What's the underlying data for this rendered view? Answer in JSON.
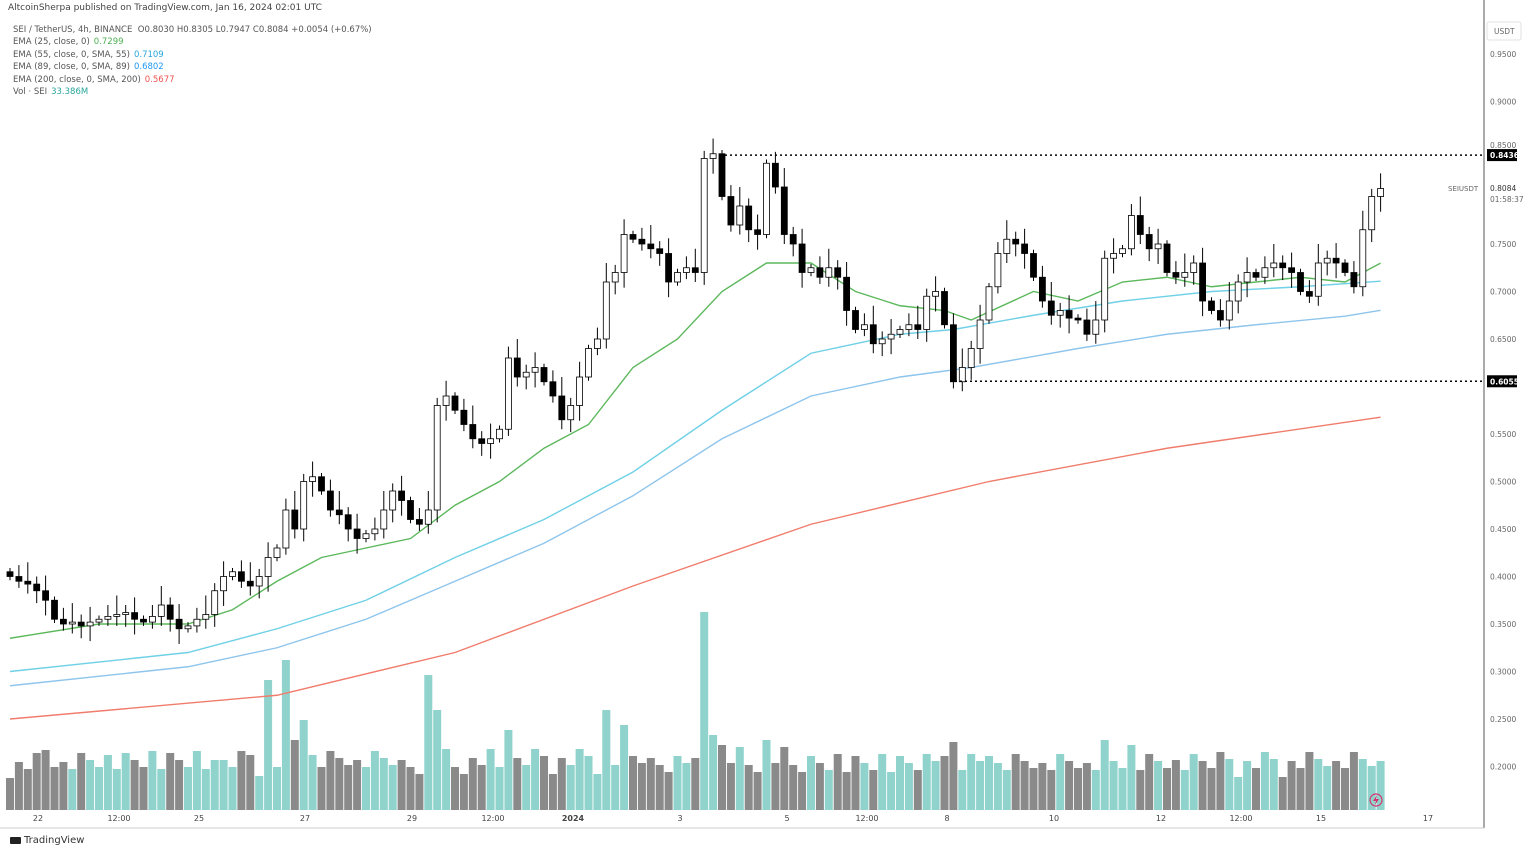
{
  "header": "AltcoinSherpa published on TradingView.com, Jan 16, 2024 02:01 UTC",
  "legend": {
    "symbol": "SEI / TetherUS, 4h, BINANCE",
    "ohlc": "O0.8030  H0.8305  L0.7947  C0.8084  +0.0054 (+0.67%)",
    "indicators": [
      {
        "label": "EMA (25, close, 0)",
        "value": "0.7299",
        "color": "#4caf50"
      },
      {
        "label": "EMA (55, close, 0, SMA, 55)",
        "value": "0.7109",
        "color": "#26a5d9"
      },
      {
        "label": "EMA (89, close, 0, SMA, 89)",
        "value": "0.6802",
        "color": "#2196f3"
      },
      {
        "label": "EMA (200, close, 0, SMA, 200)",
        "value": "0.5677",
        "color": "#ef5350"
      },
      {
        "label": "Vol · SEI",
        "value": "33.386M",
        "color": "#26a69a"
      }
    ]
  },
  "price_axis": {
    "currency": "USDT",
    "ticks": [
      "0.9500",
      "0.9000",
      "0.8500",
      "0.7500",
      "0.7000",
      "0.6500",
      "0.5500",
      "0.5000",
      "0.4500",
      "0.4000",
      "0.3500",
      "0.3000",
      "0.2500",
      "0.2000"
    ],
    "symbol_label": "SEIUSDT",
    "last_price": "0.8084",
    "countdown": "01:58:37",
    "level_high": "0.8436",
    "level_low": "0.6055"
  },
  "time_axis": {
    "ticks": [
      "22",
      "12:00",
      "25",
      "27",
      "29",
      "12:00",
      "2024",
      "3",
      "5",
      "12:00",
      "8",
      "10",
      "12",
      "12:00",
      "15",
      "17"
    ]
  },
  "branding": "TradingView",
  "colors": {
    "up_vol": "#8fd3cc",
    "down_vol": "#8a8a8a",
    "ema25": "#5cb85c",
    "ema55": "#6fd0e6",
    "ema89": "#8ec5ec",
    "ema200": "#f07c6c"
  },
  "chart_data": {
    "type": "candlestick",
    "title": "SEI / TetherUS, 4h, BINANCE",
    "ylim": [
      0.15,
      0.98
    ],
    "close": [
      0.4,
      0.395,
      0.392,
      0.385,
      0.375,
      0.355,
      0.35,
      0.352,
      0.348,
      0.352,
      0.355,
      0.358,
      0.36,
      0.362,
      0.355,
      0.352,
      0.358,
      0.37,
      0.355,
      0.345,
      0.348,
      0.355,
      0.36,
      0.385,
      0.4,
      0.405,
      0.395,
      0.39,
      0.4,
      0.42,
      0.43,
      0.47,
      0.45,
      0.5,
      0.505,
      0.49,
      0.47,
      0.465,
      0.45,
      0.44,
      0.445,
      0.45,
      0.47,
      0.49,
      0.48,
      0.46,
      0.455,
      0.47,
      0.58,
      0.59,
      0.575,
      0.56,
      0.545,
      0.54,
      0.545,
      0.555,
      0.63,
      0.61,
      0.615,
      0.62,
      0.605,
      0.59,
      0.565,
      0.58,
      0.61,
      0.64,
      0.65,
      0.71,
      0.72,
      0.76,
      0.755,
      0.75,
      0.745,
      0.74,
      0.71,
      0.72,
      0.725,
      0.72,
      0.84,
      0.845,
      0.8,
      0.77,
      0.79,
      0.765,
      0.76,
      0.835,
      0.81,
      0.76,
      0.75,
      0.72,
      0.725,
      0.715,
      0.725,
      0.715,
      0.68,
      0.66,
      0.665,
      0.645,
      0.65,
      0.655,
      0.66,
      0.665,
      0.66,
      0.695,
      0.7,
      0.665,
      0.605,
      0.62,
      0.64,
      0.67,
      0.705,
      0.74,
      0.755,
      0.75,
      0.74,
      0.715,
      0.69,
      0.675,
      0.68,
      0.672,
      0.67,
      0.655,
      0.67,
      0.735,
      0.74,
      0.745,
      0.78,
      0.76,
      0.745,
      0.75,
      0.72,
      0.715,
      0.72,
      0.73,
      0.69,
      0.68,
      0.67,
      0.69,
      0.71,
      0.72,
      0.715,
      0.725,
      0.73,
      0.725,
      0.72,
      0.7,
      0.695,
      0.73,
      0.735,
      0.73,
      0.72,
      0.705,
      0.765,
      0.8,
      0.8084
    ],
    "volume_spikes_M": {
      "4": 60,
      "11": 55,
      "23": 50,
      "27": 55,
      "29": 130,
      "31": 150,
      "32": 70,
      "33": 90,
      "34": 55,
      "47": 135,
      "48": 100,
      "56": 80,
      "67": 100,
      "69": 85,
      "78": 198,
      "79": 75,
      "80": 65,
      "85": 70,
      "106": 68,
      "123": 70,
      "126": 65,
      "131": 50
    },
    "ema": {
      "ema25": [
        [
          0,
          0.335
        ],
        [
          10,
          0.35
        ],
        [
          20,
          0.35
        ],
        [
          25,
          0.365
        ],
        [
          30,
          0.395
        ],
        [
          35,
          0.42
        ],
        [
          40,
          0.43
        ],
        [
          45,
          0.44
        ],
        [
          50,
          0.475
        ],
        [
          55,
          0.5
        ],
        [
          60,
          0.535
        ],
        [
          65,
          0.56
        ],
        [
          70,
          0.62
        ],
        [
          75,
          0.65
        ],
        [
          80,
          0.7
        ],
        [
          85,
          0.73
        ],
        [
          90,
          0.73
        ],
        [
          95,
          0.7
        ],
        [
          100,
          0.685
        ],
        [
          105,
          0.68
        ],
        [
          108,
          0.67
        ],
        [
          115,
          0.7
        ],
        [
          120,
          0.69
        ],
        [
          125,
          0.71
        ],
        [
          130,
          0.715
        ],
        [
          135,
          0.705
        ],
        [
          140,
          0.71
        ],
        [
          145,
          0.715
        ],
        [
          150,
          0.71
        ],
        [
          154,
          0.7299
        ]
      ],
      "ema55": [
        [
          0,
          0.3
        ],
        [
          20,
          0.32
        ],
        [
          30,
          0.345
        ],
        [
          40,
          0.375
        ],
        [
          50,
          0.42
        ],
        [
          60,
          0.46
        ],
        [
          70,
          0.51
        ],
        [
          80,
          0.575
        ],
        [
          90,
          0.635
        ],
        [
          100,
          0.655
        ],
        [
          106,
          0.66
        ],
        [
          115,
          0.675
        ],
        [
          125,
          0.69
        ],
        [
          135,
          0.7
        ],
        [
          145,
          0.705
        ],
        [
          154,
          0.7109
        ]
      ],
      "ema89": [
        [
          0,
          0.285
        ],
        [
          20,
          0.305
        ],
        [
          30,
          0.325
        ],
        [
          40,
          0.355
        ],
        [
          50,
          0.395
        ],
        [
          60,
          0.435
        ],
        [
          70,
          0.485
        ],
        [
          80,
          0.545
        ],
        [
          90,
          0.59
        ],
        [
          100,
          0.61
        ],
        [
          108,
          0.62
        ],
        [
          120,
          0.64
        ],
        [
          130,
          0.655
        ],
        [
          140,
          0.665
        ],
        [
          150,
          0.674
        ],
        [
          154,
          0.6802
        ]
      ],
      "ema200": [
        [
          0,
          0.25
        ],
        [
          30,
          0.275
        ],
        [
          50,
          0.32
        ],
        [
          70,
          0.39
        ],
        [
          90,
          0.455
        ],
        [
          110,
          0.5
        ],
        [
          130,
          0.535
        ],
        [
          154,
          0.5677
        ]
      ]
    },
    "levels": [
      0.8436,
      0.6055
    ]
  }
}
